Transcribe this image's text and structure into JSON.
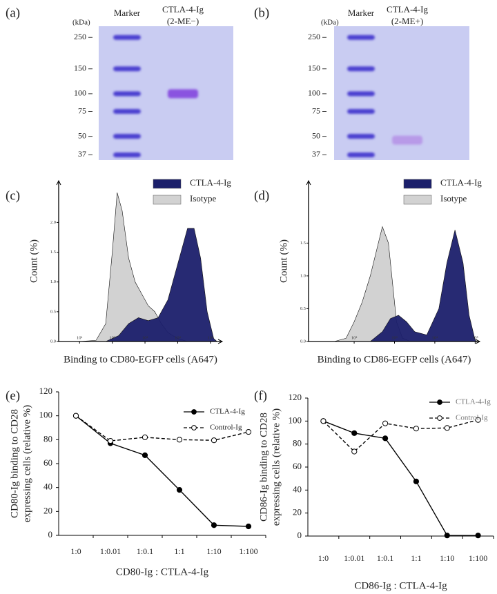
{
  "chart_data": [
    {
      "type": "gel",
      "panel_label": "(a)",
      "axis_label": "(kDa)",
      "yscale": "log",
      "ylim": [
        34,
        300
      ],
      "yticks": [
        250,
        150,
        100,
        75,
        50,
        37
      ],
      "color": "#c9ccf2",
      "lanes": [
        {
          "name": "Marker",
          "color": "#4b3fd0",
          "bands": [
            250,
            150,
            100,
            75,
            50,
            37
          ]
        },
        {
          "name": "CTLA-4-Ig",
          "sublabel": "(2-ME−)",
          "color": "#8a52e0",
          "bands": [
            100
          ]
        }
      ]
    },
    {
      "type": "gel",
      "panel_label": "(b)",
      "axis_label": "(kDa)",
      "yscale": "log",
      "ylim": [
        34,
        300
      ],
      "yticks": [
        250,
        150,
        100,
        75,
        50,
        37
      ],
      "color": "#c9ccf2",
      "lanes": [
        {
          "name": "Marker",
          "color": "#4b3fd0",
          "bands": [
            250,
            150,
            100,
            75,
            50,
            37
          ]
        },
        {
          "name": "CTLA-4-Ig",
          "sublabel": "(2-ME+)",
          "color": "#b89ae8",
          "bands": [
            47
          ]
        }
      ]
    },
    {
      "type": "area",
      "panel_label": "(c)",
      "xlabel": "Binding to CD80-EGFP cells (A647)",
      "ylabel": "Count (%)",
      "xscale": "log",
      "xlim": [
        2.3,
        230000
      ],
      "xticks": [
        {
          "value": 10,
          "label": "10¹"
        },
        {
          "value": 100,
          "label": "10²"
        },
        {
          "value": 1000,
          "label": "10³"
        },
        {
          "value": 10000,
          "label": "10⁴"
        },
        {
          "value": 100000,
          "label": "10⁵"
        }
      ],
      "ylim": [
        0,
        2.7
      ],
      "yticks": [
        {
          "value": 0,
          "label": "0.0"
        },
        0.5,
        {
          "value": 1,
          "label": "1.0"
        },
        1.5,
        {
          "value": 2,
          "label": "2.0"
        }
      ],
      "series": [
        {
          "name": "CTLA-4-Ig",
          "color": "#1b1f6b",
          "x": [
            63,
            158,
            316,
            631,
            1259,
            2512,
            5012,
            7943,
            12589,
            19953,
            31623,
            50119,
            79433,
            125893,
            158489
          ],
          "values": [
            0,
            0.1,
            0.3,
            0.4,
            0.35,
            0.4,
            0.7,
            1.1,
            1.5,
            1.9,
            1.9,
            1.4,
            0.5,
            0.05,
            0
          ]
        },
        {
          "name": "Isotype",
          "color": "#d2d2d2",
          "x": [
            10,
            32,
            63,
            100,
            141,
            200,
            316,
            500,
            794,
            1259,
            1995,
            3162,
            5012,
            10000,
            19953
          ],
          "values": [
            0,
            0.02,
            0.3,
            1.5,
            2.5,
            2.2,
            1.4,
            1.0,
            0.8,
            0.6,
            0.5,
            0.3,
            0.15,
            0.05,
            0
          ]
        }
      ]
    },
    {
      "type": "area",
      "panel_label": "(d)",
      "xlabel": "Binding to CD86-EGFP cells (A647)",
      "ylabel": "Count (%)",
      "xscale": "log",
      "xlim": [
        7.4,
        130000
      ],
      "xticks": [
        {
          "value": 100,
          "label": "10²"
        },
        {
          "value": 1000,
          "label": "10³"
        },
        {
          "value": 10000,
          "label": "10⁴"
        },
        {
          "value": 100000,
          "label": "10⁵"
        }
      ],
      "ylim": [
        0,
        2.45
      ],
      "yticks": [
        {
          "value": 0,
          "label": "0.0"
        },
        0.5,
        {
          "value": 1,
          "label": "1.0"
        },
        1.5
      ],
      "series": [
        {
          "name": "CTLA-4-Ig",
          "color": "#1b1f6b",
          "x": [
            251,
            501,
            794,
            1259,
            1995,
            3162,
            6310,
            12589,
            19953,
            31623,
            50119,
            70795,
            100000,
            112202
          ],
          "values": [
            0,
            0.15,
            0.35,
            0.4,
            0.3,
            0.15,
            0.1,
            0.5,
            1.2,
            1.7,
            1.2,
            0.4,
            0.02,
            0
          ]
        },
        {
          "name": "Isotype",
          "color": "#d2d2d2",
          "x": [
            32,
            63,
            100,
            158,
            251,
            398,
            501,
            708,
            891,
            1122,
            1585,
            2512
          ],
          "values": [
            0,
            0.05,
            0.3,
            0.6,
            1.0,
            1.5,
            1.75,
            1.5,
            0.9,
            0.3,
            0.05,
            0
          ]
        }
      ]
    },
    {
      "type": "line",
      "panel_label": "(e)",
      "xlabel": "CD80-Ig : CTLA-4-Ig",
      "ylabel": [
        "CD80-Ig binding to CD28",
        "expressing cells (relative %)"
      ],
      "categories": [
        "1:0",
        "1:0.01",
        "1:0.1",
        "1:1",
        "1:10",
        "1:100"
      ],
      "ylim": [
        0,
        120
      ],
      "yticks": [
        0,
        20,
        40,
        60,
        80,
        100,
        120
      ],
      "legend_text_color": "#222222",
      "series": [
        {
          "name": "CTLA-4-Ig",
          "color": "#000000",
          "dashed": false,
          "filled": true,
          "values": [
            100,
            77,
            67,
            38,
            8.5,
            7.5
          ]
        },
        {
          "name": "Control-Ig",
          "color": "#000000",
          "dashed": true,
          "filled": false,
          "values": [
            100,
            79,
            82,
            80,
            79.5,
            86.5
          ]
        }
      ]
    },
    {
      "type": "line",
      "panel_label": "(f)",
      "xlabel": "CD86-Ig : CTLA-4-Ig",
      "ylabel": [
        "CD86-Ig binding to CD28",
        "expressing cells (relative %)"
      ],
      "categories": [
        "1:0",
        "1:0.01",
        "1:0.1",
        "1:1",
        "1:10",
        "1:100"
      ],
      "ylim": [
        0,
        120
      ],
      "yticks": [
        0,
        20,
        40,
        60,
        80,
        100,
        120
      ],
      "legend_text_color": "#777777",
      "series": [
        {
          "name": "CTLA-4-Ig",
          "color": "#000000",
          "dashed": false,
          "filled": true,
          "values": [
            100,
            89.5,
            85,
            47.5,
            0.5,
            0.5
          ]
        },
        {
          "name": "Control-Ig",
          "color": "#000000",
          "dashed": true,
          "filled": false,
          "values": [
            100,
            73.5,
            98,
            93.5,
            94,
            101
          ]
        }
      ]
    }
  ]
}
